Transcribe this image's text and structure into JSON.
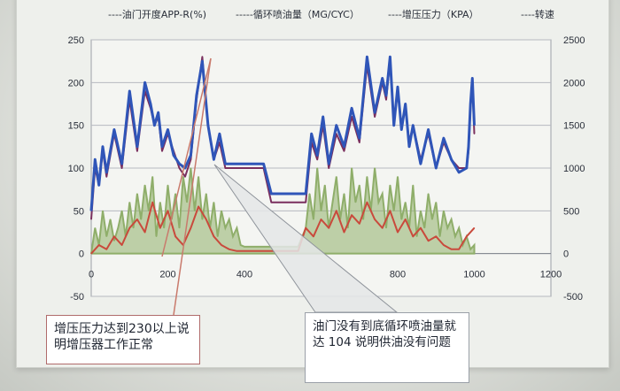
{
  "legend": [
    {
      "label": "----油门开度APP-R(%)",
      "color": "#2f55b8"
    },
    {
      "label": "-----循环喷油量（MG/CYC）",
      "color": "#7a2f5e"
    },
    {
      "label": "----增压压力（KPA）",
      "color": "#c94a3c"
    },
    {
      "label": "----转速",
      "color": "#8fae6a"
    }
  ],
  "callouts": {
    "boost": "增压压力达到230以上说明增压器工作正常",
    "fuel": "油门没有到底循环喷油量就达 104 说明供油没有问题"
  },
  "chart_data": {
    "type": "line",
    "title": "",
    "xlabel": "",
    "ylabel": "",
    "xlim": [
      0,
      1200
    ],
    "ylim": [
      -50,
      250
    ],
    "y2lim": [
      -500,
      2500
    ],
    "x_ticks": [
      "0",
      "200",
      "400",
      "800",
      "1000",
      "1200"
    ],
    "x_tick_values": [
      0,
      200,
      400,
      800,
      1000,
      1200
    ],
    "y_ticks": [
      "250",
      "200",
      "150",
      "100",
      "50",
      "0",
      "-50"
    ],
    "y_tick_values": [
      250,
      200,
      150,
      100,
      50,
      0,
      -50
    ],
    "y2_ticks": [
      "2500",
      "2000",
      "1500",
      "1000",
      "500",
      "0",
      "-500"
    ],
    "y2_tick_values": [
      2500,
      2000,
      1500,
      1000,
      500,
      0,
      -500
    ],
    "grid": true,
    "series": [
      {
        "name": "油门开度APP-R(%)",
        "color": "#7a2f5e",
        "axis": "left",
        "x": [
          0,
          10,
          20,
          30,
          40,
          60,
          80,
          100,
          120,
          140,
          155,
          165,
          175,
          185,
          200,
          215,
          230,
          245,
          260,
          275,
          290,
          305,
          320,
          335,
          350,
          380,
          420,
          450,
          470,
          480,
          560,
          575,
          590,
          605,
          620,
          640,
          660,
          680,
          700,
          720,
          740,
          760,
          770,
          780,
          790,
          800,
          810,
          820,
          830,
          840,
          860,
          880,
          900,
          920,
          940,
          960,
          980,
          985,
          990,
          995,
          1000
        ],
        "y": [
          40,
          100,
          80,
          120,
          90,
          140,
          100,
          180,
          120,
          190,
          170,
          150,
          160,
          120,
          140,
          120,
          100,
          90,
          110,
          180,
          230,
          150,
          110,
          130,
          100,
          100,
          100,
          100,
          60,
          60,
          60,
          130,
          110,
          150,
          100,
          140,
          120,
          160,
          130,
          220,
          160,
          200,
          180,
          225,
          150,
          190,
          150,
          170,
          130,
          150,
          110,
          140,
          100,
          130,
          110,
          100,
          100,
          120,
          170,
          200,
          140
        ]
      },
      {
        "name": "循环喷油量（MG/CYC）",
        "color": "#2f55b8",
        "axis": "left",
        "x": [
          0,
          10,
          20,
          30,
          40,
          60,
          80,
          100,
          120,
          140,
          155,
          165,
          175,
          185,
          200,
          215,
          230,
          245,
          260,
          275,
          290,
          305,
          320,
          335,
          350,
          380,
          420,
          450,
          470,
          480,
          560,
          575,
          590,
          605,
          620,
          640,
          660,
          680,
          700,
          720,
          740,
          760,
          770,
          780,
          790,
          800,
          810,
          820,
          830,
          840,
          860,
          880,
          900,
          920,
          940,
          960,
          980,
          985,
          990,
          995,
          1000
        ],
        "y": [
          50,
          110,
          80,
          125,
          95,
          145,
          105,
          190,
          125,
          200,
          175,
          150,
          165,
          125,
          145,
          115,
          105,
          100,
          115,
          185,
          225,
          150,
          110,
          140,
          105,
          105,
          105,
          105,
          70,
          70,
          70,
          140,
          115,
          160,
          105,
          150,
          125,
          170,
          135,
          230,
          165,
          205,
          185,
          230,
          150,
          195,
          145,
          175,
          125,
          150,
          105,
          145,
          100,
          135,
          110,
          95,
          100,
          125,
          175,
          205,
          150
        ]
      },
      {
        "name": "增压压力（KPA）",
        "color": "#c94a3c",
        "axis": "left",
        "x": [
          0,
          20,
          40,
          60,
          80,
          100,
          120,
          140,
          160,
          180,
          200,
          220,
          240,
          260,
          280,
          300,
          320,
          340,
          360,
          380,
          400,
          420,
          440,
          460,
          480,
          500,
          520,
          540,
          560,
          580,
          600,
          620,
          640,
          660,
          680,
          700,
          720,
          740,
          760,
          780,
          800,
          820,
          840,
          860,
          880,
          900,
          920,
          940,
          960,
          980,
          1000
        ],
        "y": [
          0,
          10,
          5,
          20,
          10,
          30,
          40,
          25,
          60,
          30,
          50,
          20,
          10,
          30,
          55,
          40,
          20,
          10,
          5,
          3,
          3,
          3,
          3,
          3,
          3,
          3,
          3,
          3,
          30,
          20,
          40,
          30,
          50,
          25,
          45,
          35,
          60,
          40,
          30,
          50,
          25,
          40,
          20,
          30,
          15,
          20,
          10,
          5,
          5,
          20,
          30
        ]
      },
      {
        "name": "转速",
        "color": "#8fae6a",
        "axis": "right",
        "x": [
          0,
          10,
          20,
          30,
          40,
          50,
          60,
          70,
          80,
          90,
          100,
          110,
          120,
          130,
          140,
          150,
          160,
          170,
          180,
          190,
          200,
          210,
          220,
          230,
          240,
          250,
          260,
          270,
          280,
          290,
          300,
          310,
          320,
          330,
          340,
          350,
          360,
          370,
          380,
          390,
          400,
          420,
          440,
          460,
          480,
          500,
          520,
          540,
          560,
          570,
          580,
          590,
          600,
          610,
          620,
          630,
          640,
          650,
          660,
          670,
          680,
          690,
          700,
          710,
          720,
          730,
          740,
          750,
          760,
          770,
          780,
          790,
          800,
          810,
          820,
          830,
          840,
          850,
          860,
          870,
          880,
          890,
          900,
          910,
          920,
          930,
          940,
          950,
          960,
          970,
          980,
          990,
          1000
        ],
        "y": [
          0,
          300,
          100,
          500,
          200,
          400,
          150,
          300,
          500,
          200,
          600,
          300,
          700,
          400,
          800,
          500,
          900,
          200,
          600,
          300,
          800,
          400,
          700,
          300,
          900,
          600,
          1000,
          500,
          900,
          400,
          700,
          300,
          600,
          200,
          500,
          300,
          400,
          200,
          300,
          100,
          80,
          80,
          80,
          80,
          80,
          80,
          80,
          80,
          300,
          700,
          400,
          1000,
          500,
          800,
          300,
          600,
          900,
          400,
          700,
          300,
          1000,
          600,
          800,
          400,
          900,
          500,
          1000,
          600,
          700,
          300,
          800,
          500,
          900,
          400,
          600,
          300,
          800,
          200,
          500,
          300,
          700,
          400,
          600,
          200,
          500,
          300,
          400,
          200,
          300,
          100,
          200,
          50,
          100
        ]
      }
    ]
  }
}
